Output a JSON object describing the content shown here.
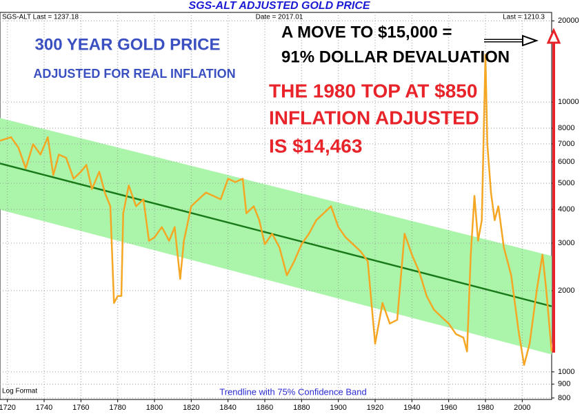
{
  "chart_data": {
    "type": "line",
    "title": "SGS-ALT ADJUSTED  GOLD PRICE",
    "header_left": "SGS-ALT Last = 1237.18",
    "header_center": "Date = 2017.01",
    "header_right": "Last = 1210.3",
    "annotations": [
      "300 YEAR GOLD PRICE",
      "ADJUSTED FOR REAL INFLATION",
      "A MOVE TO $15,000 =",
      "91% DOLLAR DEVALUATION",
      "THE 1980 TOP AT $850",
      "INFLATION ADJUSTED",
      "IS $14,463"
    ],
    "scale_note": "Log Format",
    "footer": "Trendline with 75% Confidence Band",
    "log_scale": true,
    "grid": true,
    "xlim": [
      1716,
      2016
    ],
    "xticks": [
      1720,
      1740,
      1760,
      1780,
      1800,
      1820,
      1840,
      1860,
      1880,
      1900,
      1920,
      1940,
      1960,
      1980,
      2000
    ],
    "ylim": [
      790,
      21500
    ],
    "yticks": [
      800,
      900,
      1000,
      2000,
      3000,
      4000,
      5000,
      6000,
      7000,
      8000,
      10000,
      20000
    ],
    "band": {
      "color": "#aaf5aa",
      "x": [
        1716,
        2016
      ],
      "upper": [
        8730,
        2690
      ],
      "lower": [
        3990,
        1160
      ]
    },
    "trendline": {
      "color": "#1a7a1a",
      "x": [
        1716,
        2016
      ],
      "values": [
        5920,
        1750
      ]
    },
    "series": [
      {
        "color": "#f5a623",
        "x": [
          1716,
          1722,
          1726,
          1730,
          1734,
          1738,
          1742,
          1745,
          1748,
          1752,
          1756,
          1760,
          1763,
          1766,
          1770,
          1773,
          1776,
          1778,
          1780,
          1782,
          1783,
          1786,
          1790,
          1794,
          1797,
          1800,
          1804,
          1808,
          1811,
          1814,
          1816,
          1820,
          1824,
          1828,
          1832,
          1836,
          1840,
          1844,
          1848,
          1850,
          1854,
          1857,
          1860,
          1864,
          1868,
          1872,
          1876,
          1880,
          1884,
          1888,
          1892,
          1896,
          1900,
          1904,
          1908,
          1912,
          1916,
          1920,
          1924,
          1928,
          1932,
          1936,
          1940,
          1944,
          1948,
          1952,
          1956,
          1960,
          1964,
          1968,
          1970,
          1972,
          1974,
          1976,
          1978,
          1980,
          1981,
          1983,
          1985,
          1987,
          1990,
          1994,
          1998,
          2001,
          2004,
          2008,
          2011,
          2013,
          2016
        ],
        "values": [
          7190,
          7410,
          6780,
          5680,
          6980,
          6390,
          7410,
          5360,
          6390,
          6210,
          5200,
          5520,
          5850,
          4760,
          5520,
          4620,
          4110,
          1800,
          1910,
          1910,
          3870,
          4910,
          4110,
          4360,
          3060,
          3150,
          3440,
          3060,
          3440,
          2210,
          3060,
          4110,
          4360,
          4620,
          4490,
          4360,
          5200,
          5050,
          5200,
          3870,
          4110,
          3650,
          2970,
          3250,
          2890,
          2280,
          2570,
          2970,
          3250,
          3650,
          3870,
          4110,
          3440,
          3150,
          2970,
          2800,
          2570,
          1270,
          1800,
          1510,
          1560,
          3250,
          2720,
          2350,
          1910,
          1700,
          1600,
          1510,
          1380,
          1340,
          1190,
          2720,
          4490,
          3060,
          3650,
          15000,
          6980,
          4620,
          3650,
          4110,
          2890,
          2280,
          1420,
          1060,
          1270,
          2030,
          2720,
          2030,
          1190
        ]
      }
    ]
  }
}
